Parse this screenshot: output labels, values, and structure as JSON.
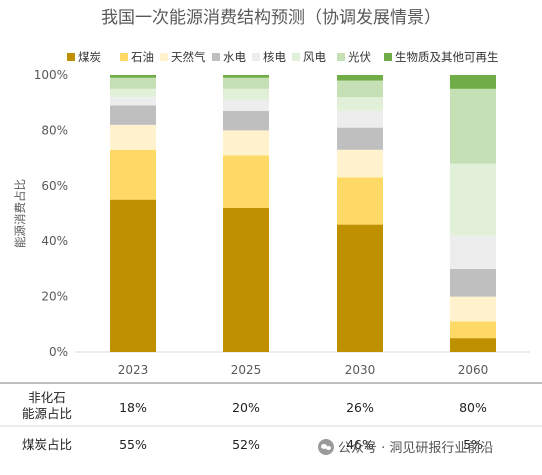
{
  "chart_data": {
    "type": "bar",
    "stacked": true,
    "title": "我国一次能源消费结构预测（协调发展情景）",
    "ylabel": "能源消费占比",
    "xlabel": "",
    "ylim": [
      0,
      100
    ],
    "yticks": [
      "0%",
      "20%",
      "40%",
      "60%",
      "80%",
      "100%"
    ],
    "categories": [
      "2023",
      "2025",
      "2030",
      "2060"
    ],
    "legend_position": "top",
    "series": [
      {
        "name": "煤炭",
        "color": "#bf9000",
        "values": [
          55,
          52,
          46,
          5
        ]
      },
      {
        "name": "石油",
        "color": "#ffd966",
        "values": [
          18,
          19,
          17,
          6
        ]
      },
      {
        "name": "天然气",
        "color": "#fff2cc",
        "values": [
          9,
          9,
          10,
          9
        ]
      },
      {
        "name": "水电",
        "color": "#bfbfbf",
        "values": [
          7,
          7,
          8,
          10
        ]
      },
      {
        "name": "核电",
        "color": "#ededed",
        "values": [
          3,
          4,
          6,
          12
        ]
      },
      {
        "name": "风电",
        "color": "#e2f0d9",
        "values": [
          3,
          4,
          5,
          26
        ]
      },
      {
        "name": "光伏",
        "color": "#c5e0b4",
        "values": [
          4,
          4,
          6,
          27
        ]
      },
      {
        "name": "生物质及其他可再生",
        "color": "#70ad47",
        "values": [
          1,
          1,
          2,
          5
        ]
      }
    ],
    "table": {
      "rows": [
        {
          "label": [
            "非化石",
            "能源占比"
          ],
          "values": [
            "18%",
            "20%",
            "26%",
            "80%"
          ]
        },
        {
          "label": [
            "煤炭占比"
          ],
          "values": [
            "55%",
            "52%",
            "46%",
            "5%"
          ]
        }
      ]
    }
  },
  "watermark": {
    "text": "公众号 · 洞见研报行业前沿",
    "icon": "wechat-icon"
  }
}
